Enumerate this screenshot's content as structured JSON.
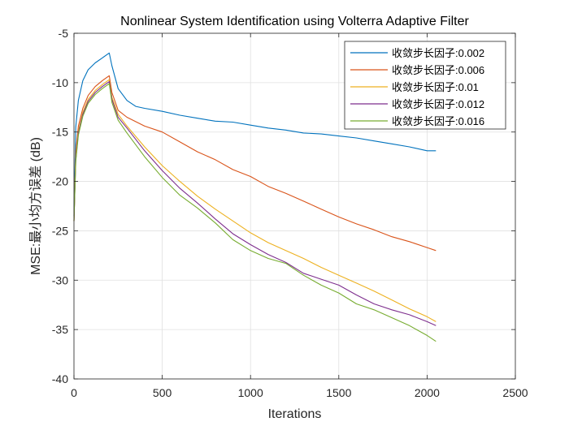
{
  "chart_data": {
    "type": "line",
    "title": "Nonlinear System Identification using Volterra Adaptive Filter",
    "xlabel": "Iterations",
    "ylabel": "MSE:最小均方误差 (dB)",
    "xlim": [
      0,
      2500
    ],
    "ylim": [
      -40,
      -5
    ],
    "xticks": [
      0,
      500,
      1000,
      1500,
      2000,
      2500
    ],
    "yticks": [
      -40,
      -35,
      -30,
      -25,
      -20,
      -15,
      -10,
      -5
    ],
    "xtick_labels": [
      "0",
      "500",
      "1000",
      "1500",
      "2000",
      "2500"
    ],
    "ytick_labels": [
      "-40",
      "-35",
      "-30",
      "-25",
      "-20",
      "-15",
      "-10",
      "-5"
    ],
    "grid": true,
    "legend_position": "top-right",
    "series": [
      {
        "name": "收敛步长因子:0.002",
        "color": "#0072BD",
        "x": [
          0,
          10,
          25,
          50,
          80,
          120,
          160,
          200,
          215,
          250,
          300,
          350,
          400,
          500,
          600,
          700,
          800,
          900,
          1000,
          1100,
          1200,
          1300,
          1400,
          1500,
          1600,
          1700,
          1800,
          1900,
          2000,
          2050
        ],
        "y": [
          -23.5,
          -14.5,
          -11.8,
          -9.8,
          -8.7,
          -8.0,
          -7.5,
          -7.0,
          -8.3,
          -10.6,
          -11.8,
          -12.4,
          -12.6,
          -12.9,
          -13.3,
          -13.6,
          -13.9,
          -14.0,
          -14.3,
          -14.6,
          -14.8,
          -15.1,
          -15.2,
          -15.4,
          -15.6,
          -15.9,
          -16.2,
          -16.5,
          -16.9,
          -16.9
        ]
      },
      {
        "name": "收敛步长因子:0.006",
        "color": "#D95319",
        "x": [
          0,
          10,
          25,
          50,
          80,
          120,
          160,
          200,
          215,
          250,
          300,
          400,
          500,
          600,
          700,
          800,
          900,
          1000,
          1100,
          1200,
          1300,
          1400,
          1500,
          1600,
          1700,
          1800,
          1900,
          2000,
          2050
        ],
        "y": [
          -24,
          -17,
          -14.4,
          -12.6,
          -11.3,
          -10.4,
          -9.8,
          -9.3,
          -11.0,
          -12.8,
          -13.5,
          -14.4,
          -15.0,
          -16.0,
          -17.0,
          -17.8,
          -18.8,
          -19.5,
          -20.5,
          -21.2,
          -22.0,
          -22.8,
          -23.6,
          -24.3,
          -24.9,
          -25.6,
          -26.1,
          -26.7,
          -27.0
        ]
      },
      {
        "name": "收敛步长因子:0.01",
        "color": "#EDB120",
        "x": [
          0,
          10,
          25,
          50,
          80,
          120,
          160,
          200,
          215,
          250,
          300,
          400,
          500,
          600,
          700,
          800,
          900,
          1000,
          1100,
          1200,
          1300,
          1400,
          1500,
          1600,
          1700,
          1800,
          1900,
          2000,
          2050
        ],
        "y": [
          -24,
          -17.5,
          -14.9,
          -13.0,
          -11.7,
          -10.8,
          -10.2,
          -9.7,
          -11.5,
          -13.2,
          -14.4,
          -16.5,
          -18.4,
          -20.0,
          -21.5,
          -22.8,
          -24.0,
          -25.2,
          -26.2,
          -27.0,
          -27.8,
          -28.7,
          -29.5,
          -30.3,
          -31.1,
          -32.0,
          -32.9,
          -33.7,
          -34.2
        ]
      },
      {
        "name": "收敛步长因子:0.012",
        "color": "#7E2F8E",
        "x": [
          0,
          10,
          25,
          50,
          80,
          120,
          160,
          200,
          215,
          250,
          300,
          400,
          500,
          600,
          700,
          800,
          900,
          1000,
          1100,
          1200,
          1300,
          1400,
          1500,
          1600,
          1700,
          1800,
          1900,
          2000,
          2050
        ],
        "y": [
          -24,
          -17.8,
          -15.1,
          -13.2,
          -11.9,
          -11.0,
          -10.4,
          -9.9,
          -11.7,
          -13.5,
          -14.6,
          -16.9,
          -18.9,
          -20.7,
          -22.2,
          -23.8,
          -25.3,
          -26.4,
          -27.4,
          -28.2,
          -29.3,
          -29.9,
          -30.5,
          -31.5,
          -32.4,
          -33.0,
          -33.5,
          -34.2,
          -34.6
        ]
      },
      {
        "name": "收敛步长因子:0.016",
        "color": "#77AC30",
        "x": [
          0,
          10,
          25,
          50,
          80,
          120,
          160,
          200,
          215,
          250,
          300,
          400,
          500,
          600,
          700,
          800,
          900,
          1000,
          1100,
          1200,
          1300,
          1400,
          1500,
          1600,
          1700,
          1800,
          1900,
          2000,
          2050
        ],
        "y": [
          -24,
          -18,
          -15.3,
          -13.4,
          -12.1,
          -11.2,
          -10.6,
          -10.1,
          -12.0,
          -13.8,
          -15.1,
          -17.5,
          -19.6,
          -21.4,
          -22.7,
          -24.2,
          -25.9,
          -27.0,
          -27.8,
          -28.3,
          -29.5,
          -30.5,
          -31.3,
          -32.4,
          -33.0,
          -33.8,
          -34.6,
          -35.6,
          -36.2
        ]
      }
    ]
  }
}
